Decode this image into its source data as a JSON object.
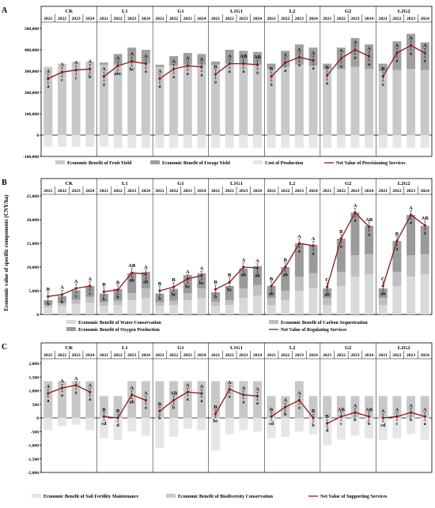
{
  "figure": {
    "ylabel": "Economic value of specific components (CNY/ha)",
    "years": [
      "2021",
      "2022",
      "2023",
      "2024"
    ],
    "treatments": [
      "CK",
      "L1",
      "G1",
      "L1G1",
      "L2",
      "G2",
      "L2G2"
    ]
  },
  "chart_data": [
    {
      "panel": "A",
      "type": "bar",
      "ylim": [
        -100000,
        500000
      ],
      "yticks": [
        -100000,
        0,
        100000,
        200000,
        300000,
        400000,
        500000
      ],
      "ytick_labels": [
        "-100,000",
        "0",
        "100,000",
        "200,000",
        "300,000",
        "400,000",
        "500,000"
      ],
      "legend": [
        "Economic Benefit of Fruit Yield",
        "Economic Benefit of Forage Yield",
        "Cost of Production",
        "Net Value of Provisioning Services"
      ],
      "series": [
        {
          "name": "Economic Benefit of Fruit Yield",
          "values": [
            [
              320000,
              335000,
              345000,
              345000
            ],
            [
              330000,
              330000,
              340000,
              335000
            ],
            [
              320000,
              325000,
              330000,
              330000
            ],
            [
              330000,
              335000,
              335000,
              330000
            ],
            [
              310000,
              320000,
              330000,
              325000
            ],
            [
              310000,
              310000,
              320000,
              310000
            ],
            [
              300000,
              305000,
              310000,
              305000
            ]
          ]
        },
        {
          "name": "Economic Benefit of Forage Yield",
          "values": [
            [
              0,
              0,
              0,
              0
            ],
            [
              10000,
              50000,
              70000,
              65000
            ],
            [
              10000,
              45000,
              55000,
              50000
            ],
            [
              15000,
              65000,
              60000,
              60000
            ],
            [
              25000,
              75000,
              95000,
              85000
            ],
            [
              25000,
              100000,
              135000,
              115000
            ],
            [
              35000,
              135000,
              165000,
              130000
            ]
          ]
        },
        {
          "name": "Cost of Production",
          "values": [
            [
              -55000,
              -55000,
              -55000,
              -55000
            ],
            [
              -55000,
              -60000,
              -60000,
              -60000
            ],
            [
              -60000,
              -60000,
              -60000,
              -60000
            ],
            [
              -60000,
              -60000,
              -60000,
              -60000
            ],
            [
              -60000,
              -60000,
              -60000,
              -60000
            ],
            [
              -60000,
              -60000,
              -60000,
              -60000
            ],
            [
              -60000,
              -60000,
              -60000,
              -60000
            ]
          ]
        },
        {
          "name": "Net Value of Provisioning Services",
          "values": [
            [
              265000,
              295000,
              305000,
              310000
            ],
            [
              275000,
              325000,
              345000,
              335000
            ],
            [
              265000,
              310000,
              325000,
              320000
            ],
            [
              285000,
              335000,
              335000,
              330000
            ],
            [
              275000,
              340000,
              365000,
              350000
            ],
            [
              280000,
              360000,
              400000,
              370000
            ],
            [
              275000,
              385000,
              420000,
              385000
            ]
          ]
        }
      ],
      "line_letters": [
        [
          "A",
          "A",
          "A",
          "A"
        ],
        [
          "A",
          "A",
          "A",
          "A"
        ],
        [
          "A",
          "A",
          "A",
          "A"
        ],
        [
          "B",
          "A",
          "AB",
          "AB"
        ],
        [
          "B",
          "A",
          "A",
          "A"
        ],
        [
          "B",
          "A",
          "A",
          "A"
        ],
        [
          "B",
          "A",
          "A",
          "A"
        ]
      ],
      "bar_letters": [
        [
          "a",
          "c",
          "c",
          "b"
        ],
        [
          "a",
          "abc",
          "bc",
          "a"
        ],
        [
          "a",
          "a",
          "a",
          "a"
        ],
        [
          "a",
          "a",
          "a",
          "a"
        ],
        [
          "a",
          "a",
          "a",
          "a"
        ],
        [
          "a",
          "a",
          "a",
          "a"
        ],
        [
          "a",
          "a",
          "a",
          "a"
        ]
      ]
    },
    {
      "panel": "B",
      "type": "bar",
      "ylim": [
        0,
        25000
      ],
      "yticks": [
        0,
        5000,
        10000,
        15000,
        20000,
        25000
      ],
      "ytick_labels": [
        "0",
        "5,000",
        "10,000",
        "15,000",
        "20,000",
        "25,000"
      ],
      "legend": [
        "Economic Benefit of Water Conservation",
        "Economic Benefit of Carbon Sequestration",
        "Economic Benefit of Oxygen Production",
        "Net Value of Regulating  Services"
      ],
      "series": [
        {
          "name": "Economic Benefit of Water Conservation",
          "values": [
            [
              1500,
              1800,
              2200,
              2500
            ],
            [
              1800,
              2000,
              3000,
              3500
            ],
            [
              1800,
              2000,
              3000,
              3500
            ],
            [
              1800,
              2000,
              3500,
              4000
            ],
            [
              2000,
              3000,
              5000,
              5500
            ],
            [
              2000,
              6000,
              8000,
              8500
            ],
            [
              2000,
              6000,
              8000,
              8500
            ]
          ]
        },
        {
          "name": "Economic Benefit of Carbon Sequestration",
          "values": [
            [
              500,
              600,
              900,
              1200
            ],
            [
              800,
              900,
              1500,
              2000
            ],
            [
              800,
              900,
              1500,
              2000
            ],
            [
              900,
              1000,
              2000,
              2200
            ],
            [
              1500,
              2000,
              3000,
              3200
            ],
            [
              1500,
              3000,
              4500,
              4200
            ],
            [
              1500,
              3000,
              4500,
              4200
            ]
          ]
        },
        {
          "name": "Economic Benefit of Oxygen Production",
          "values": [
            [
              1000,
              1500,
              2000,
              2300
            ],
            [
              1800,
              2500,
              4200,
              3500
            ],
            [
              1800,
              2500,
              3800,
              3200
            ],
            [
              2000,
              3000,
              4200,
              4000
            ],
            [
              2500,
              5000,
              7000,
              6000
            ],
            [
              2000,
              7000,
              9000,
              6000
            ],
            [
              2000,
              6500,
              8500,
              6000
            ]
          ]
        },
        {
          "name": "Net Value of Regulating  Services",
          "values": [
            [
              3800,
              4200,
              5500,
              6000
            ],
            [
              4800,
              5200,
              8800,
              8500
            ],
            [
              5000,
              5800,
              7500,
              8200
            ],
            [
              5300,
              6800,
              10000,
              9800
            ],
            [
              6000,
              10000,
              15000,
              14500
            ],
            [
              5800,
              16000,
              21500,
              18500
            ],
            [
              6000,
              15500,
              21000,
              18800
            ]
          ]
        }
      ],
      "line_letters": [
        [
          "B",
          "A",
          "A",
          "A"
        ],
        [
          "B",
          "B",
          "AB",
          "A"
        ],
        [
          "B",
          "B",
          "A",
          "A"
        ],
        [
          "B",
          "B",
          "A",
          "A"
        ],
        [
          "B",
          "B",
          "A",
          "A"
        ],
        [
          "C",
          "B",
          "A",
          "AB"
        ],
        [
          "C",
          "B",
          "A",
          "AB"
        ]
      ],
      "bar_letters": [
        [
          "b",
          "b",
          "c",
          "c"
        ],
        [
          "b",
          "b",
          "ab",
          "ab"
        ],
        [
          "b",
          "bc",
          "bc",
          "bc"
        ],
        [
          "b",
          "bc",
          "ab",
          "ab"
        ],
        [
          "ab",
          "ab",
          "a",
          "a"
        ],
        [
          "ab",
          "a",
          "a",
          "a"
        ],
        [
          "ab",
          "a",
          "a",
          "a"
        ]
      ]
    },
    {
      "panel": "C",
      "type": "bar",
      "ylim": [
        -2000,
        2000
      ],
      "yticks": [
        -2000,
        -1500,
        -1000,
        -500,
        0,
        500,
        1000,
        1500,
        2000
      ],
      "ytick_labels": [
        "-2,000",
        "-1,500",
        "-1,000",
        "-500",
        "0",
        "500",
        "1,000",
        "1,500",
        "2,000"
      ],
      "legend": [
        "Economic Benefit of Soil Fertility Maintenance",
        "Economic Benefit of Biodiversity Conservation",
        "Net Value of Supporting  Services"
      ],
      "series": [
        {
          "name": "Economic Benefit of Soil Fertility Maintenance",
          "values": [
            [
              -450,
              -300,
              -250,
              -450
            ],
            [
              -750,
              -800,
              -500,
              -650
            ],
            [
              -1100,
              -700,
              -400,
              -450
            ],
            [
              -1200,
              -600,
              -450,
              -500
            ],
            [
              -750,
              -700,
              -500,
              -600
            ],
            [
              -1000,
              -800,
              -650,
              -750
            ],
            [
              -800,
              -750,
              -600,
              -800
            ]
          ]
        },
        {
          "name": "Economic Benefit of Biodiversity Conservation",
          "values": [
            [
              1350,
              1350,
              1350,
              1350
            ],
            [
              800,
              800,
              1350,
              1350
            ],
            [
              1350,
              1350,
              1350,
              1350
            ],
            [
              1350,
              1350,
              1350,
              1350
            ],
            [
              800,
              800,
              1350,
              800
            ],
            [
              800,
              800,
              800,
              800
            ],
            [
              800,
              800,
              800,
              800
            ]
          ]
        },
        {
          "name": "Net Value of Supporting  Services",
          "values": [
            [
              900,
              1100,
              1200,
              950
            ],
            [
              50,
              0,
              850,
              650
            ],
            [
              250,
              650,
              950,
              900
            ],
            [
              150,
              1050,
              850,
              800
            ],
            [
              50,
              400,
              650,
              0
            ],
            [
              -200,
              50,
              200,
              50
            ],
            [
              0,
              50,
              200,
              50
            ]
          ]
        }
      ],
      "line_letters": [
        [
          "A",
          "A",
          "A",
          "A"
        ],
        [
          "B",
          "B",
          "A",
          "A"
        ],
        [
          "B",
          "AB",
          "A",
          "A"
        ],
        [
          "B",
          "A",
          "A",
          "A"
        ],
        [
          "B",
          "A",
          "A",
          "B"
        ],
        [
          "B",
          "AB",
          "A",
          "AB"
        ],
        [
          "A",
          "A",
          "A",
          "A"
        ]
      ],
      "bar_letters": [
        [
          "a",
          "a",
          "a",
          "a"
        ],
        [
          "cd",
          "d",
          "ab",
          "a"
        ],
        [
          "b",
          "b",
          "a",
          "a"
        ],
        [
          "bc",
          "a",
          "a",
          "a"
        ],
        [
          "cd",
          "b",
          "a",
          "b"
        ],
        [
          "d",
          "c",
          "b",
          "b"
        ],
        [
          "cd",
          "c",
          "b",
          "a"
        ]
      ]
    }
  ]
}
